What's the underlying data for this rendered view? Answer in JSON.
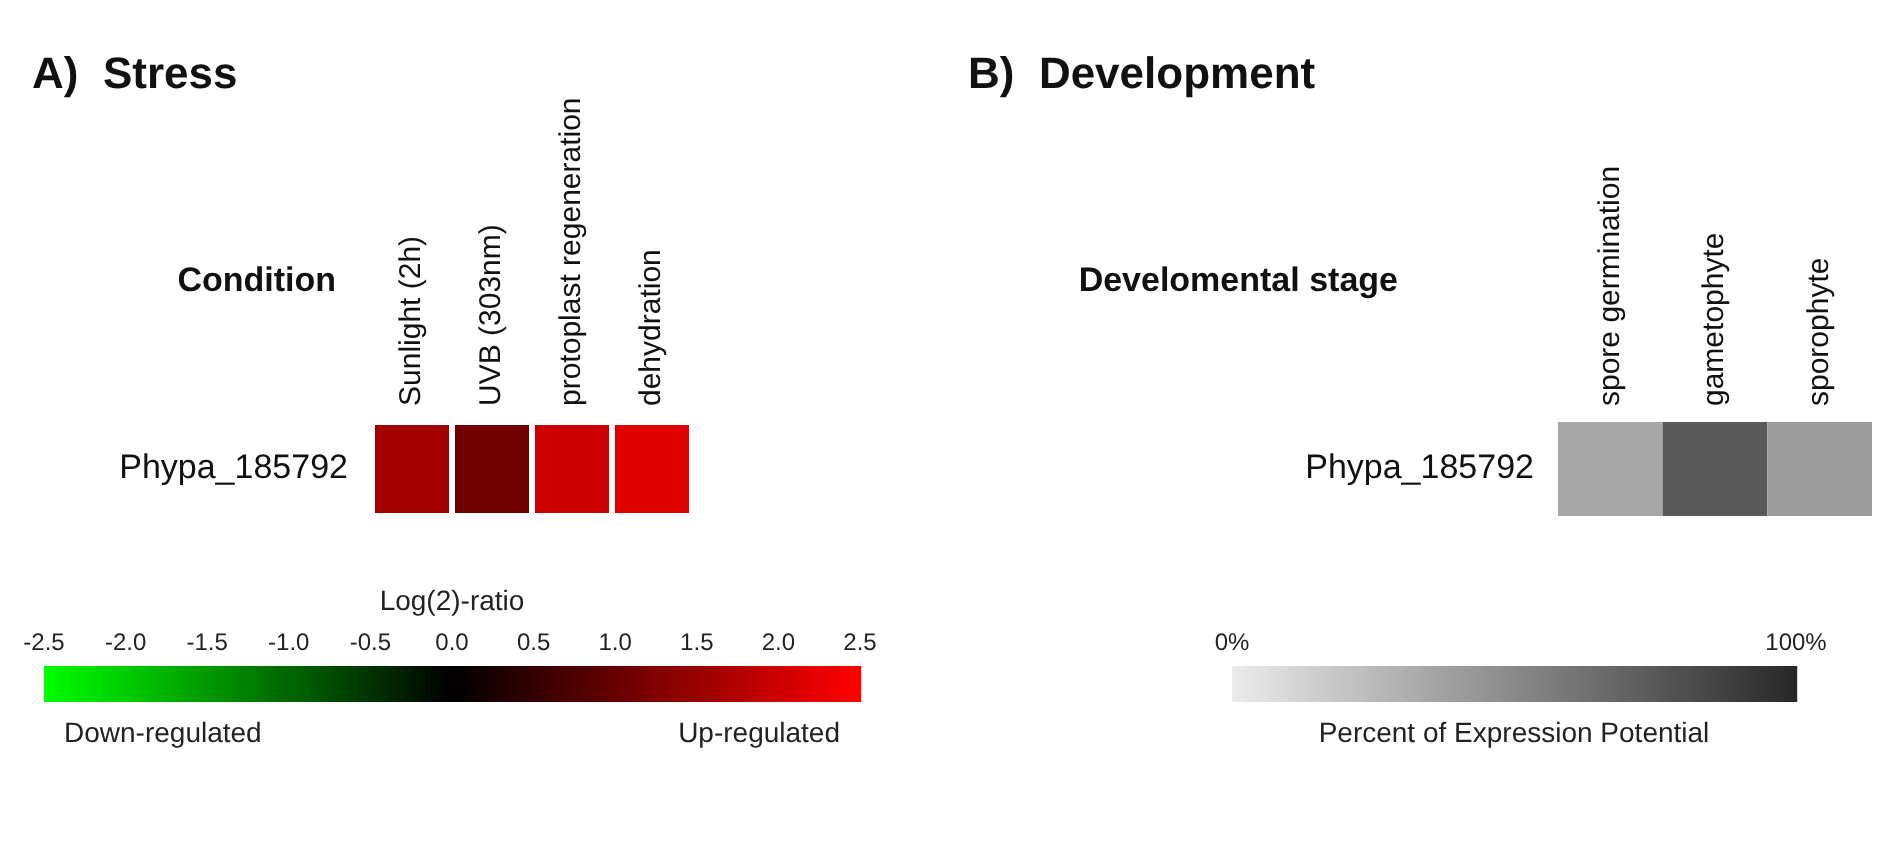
{
  "chart_data": [
    {
      "type": "heatmap",
      "title": "A)  Stress",
      "xlabel": "Condition",
      "clabel": "Log(2)-ratio",
      "categories": [
        "Sunlight (2h)",
        "UVB (303nm)",
        "protoplast regeneration",
        "dehydration"
      ],
      "y_categories": [
        "Phypa_185792"
      ],
      "cells": [
        [
          1.6,
          1.1,
          2.0,
          2.2
        ]
      ],
      "clim": [
        -2.5,
        2.5
      ],
      "cticks": [
        -2.5,
        {
          "value": -2,
          "label": "-2.0"
        },
        -1.5,
        {
          "value": -1,
          "label": "-1.0"
        },
        -0.5,
        {
          "value": 0,
          "label": "0.0"
        },
        0.5,
        {
          "value": 1,
          "label": "1.0"
        },
        1.5,
        {
          "value": 2,
          "label": "2.0"
        },
        2.5
      ],
      "annotations": [
        "Down-regulated",
        "Up-regulated"
      ]
    },
    {
      "type": "heatmap",
      "title": "B)  Development",
      "xlabel": "Develomental stage",
      "clabel": "Percent of Expression Potential",
      "categories": [
        "spore germination",
        "gametophyte",
        "sporophyte"
      ],
      "y_categories": [
        "Phypa_185792"
      ],
      "cells": [
        [
          35,
          75,
          40
        ]
      ],
      "clim": [
        0,
        100
      ],
      "cticks": [
        {
          "value": 0,
          "label": "0%"
        },
        {
          "value": 100,
          "label": "100%"
        }
      ]
    }
  ]
}
